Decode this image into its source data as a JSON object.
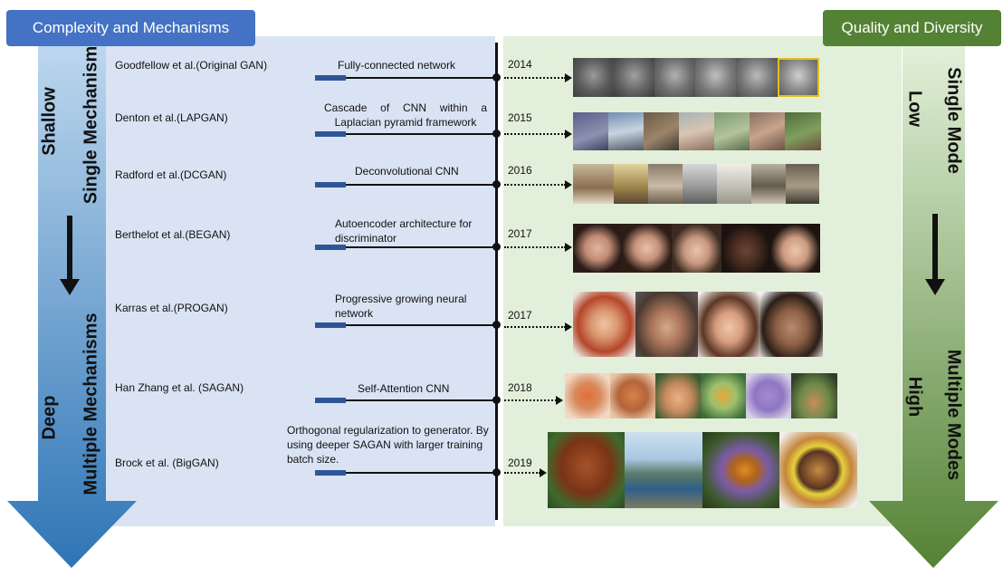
{
  "header_left": "Complexity and Mechanisms",
  "header_right": "Quality and Diversity",
  "left_axis": {
    "shallow": "Shallow",
    "single": "Single Mechanism",
    "deep": "Deep",
    "multiple": "Multiple Mechanisms"
  },
  "right_axis": {
    "low": "Low",
    "single": "Single Mode",
    "high": "High",
    "multiple": "Multiple Modes"
  },
  "rows": [
    {
      "author": "Goodfellow et al.(Original GAN)",
      "tech": "Fully-connected network",
      "year": "2014",
      "images": [
        "gray face sample",
        "gray face sample",
        "gray face sample",
        "gray face sample",
        "gray face sample",
        "gray face sample"
      ]
    },
    {
      "author": "Denton et al.(LAPGAN)",
      "tech": "Cascade of CNN within a Laplacian pyramid framework",
      "year": "2015",
      "images": [
        "blurry scene sample",
        "blurry scene sample",
        "blurry scene sample",
        "blurry scene sample",
        "blurry scene sample",
        "blurry scene sample",
        "blurry scene sample"
      ]
    },
    {
      "author": "Radford et al.(DCGAN)",
      "tech": "Deconvolutional CNN",
      "year": "2016",
      "images": [
        "bedroom sample",
        "bedroom sample",
        "bedroom sample",
        "bedroom sample",
        "bedroom sample",
        "bedroom sample",
        "bedroom sample"
      ]
    },
    {
      "author": "Berthelot et al.(BEGAN)",
      "tech": "Autoencoder architecture for discriminator",
      "year": "2017",
      "images": [
        "face sample",
        "face sample",
        "face sample",
        "face sample",
        "face sample"
      ]
    },
    {
      "author": "Karras et al.(PROGAN)",
      "tech": "Progressive growing neural network",
      "year": "2017",
      "images": [
        "face sample",
        "face sample",
        "face sample",
        "face sample"
      ]
    },
    {
      "author": "Han Zhang et al. (SAGAN)",
      "tech": "Self-Attention CNN",
      "year": "2018",
      "images": [
        "image sample",
        "image sample",
        "image sample",
        "image sample",
        "image sample",
        "image sample"
      ]
    },
    {
      "author": "Brock et al. (BigGAN)",
      "tech": "Orthogonal regularization to generator. By using deeper SAGAN with larger training batch size.",
      "year": "2019",
      "images": [
        "dog sample",
        "landscape sample",
        "butterfly sample",
        "burger sample"
      ]
    }
  ],
  "colors": {
    "left_header": "#4472c4",
    "right_header": "#548235",
    "left_panel": "#dae3f3",
    "right_panel": "#e2efda",
    "accent_bar": "#2f5597"
  }
}
